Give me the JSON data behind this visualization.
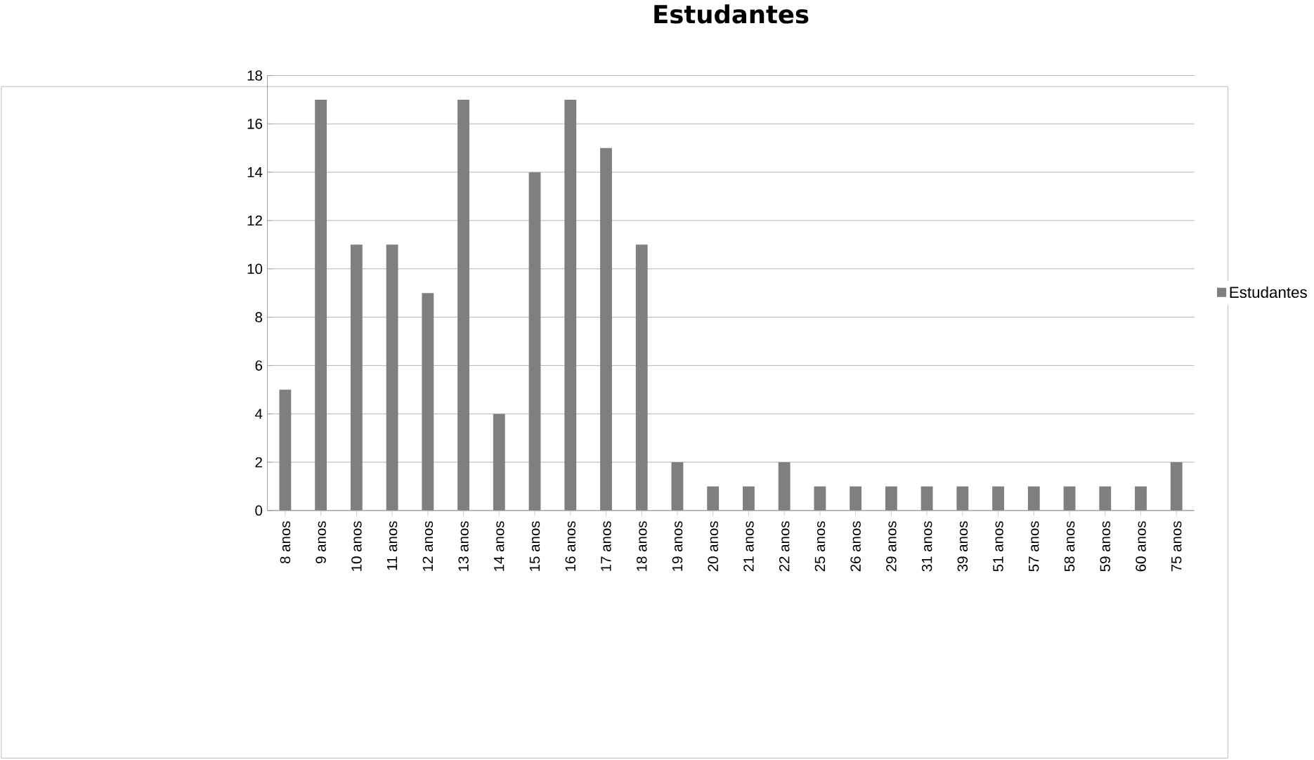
{
  "chart_data": {
    "type": "bar",
    "title": "Estudantes",
    "categories": [
      "8 anos",
      "9 anos",
      "10 anos",
      "11 anos",
      "12 anos",
      "13 anos",
      "14 anos",
      "15 anos",
      "16 anos",
      "17 anos",
      "18 anos",
      "19 anos",
      "20 anos",
      "21 anos",
      "22 anos",
      "25 anos",
      "26 anos",
      "29 anos",
      "31 anos",
      "39 anos",
      "51 anos",
      "57 anos",
      "58 anos",
      "59 anos",
      "60 anos",
      "75 anos"
    ],
    "series": [
      {
        "name": "Estudantes",
        "color": "#7f7f7f",
        "values": [
          5,
          17,
          11,
          11,
          9,
          17,
          4,
          14,
          17,
          15,
          11,
          2,
          1,
          1,
          2,
          1,
          1,
          1,
          1,
          1,
          1,
          1,
          1,
          1,
          1,
          2
        ]
      }
    ],
    "ylim": [
      0,
      18
    ],
    "yticks": [
      0,
      2,
      4,
      6,
      8,
      10,
      12,
      14,
      16,
      18
    ],
    "grid": "y",
    "legend": "right"
  }
}
